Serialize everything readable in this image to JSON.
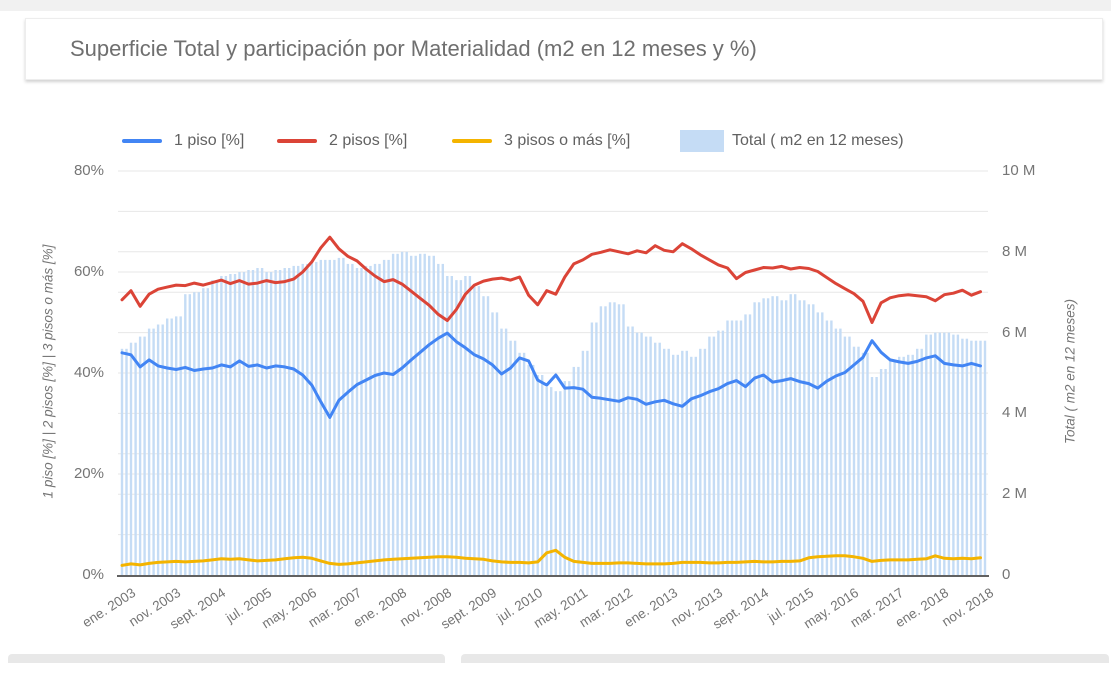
{
  "title_bar": {
    "text": "Superficie Total y participación por Materialidad (m2 en 12 meses y %)"
  },
  "legend": [
    {
      "label": "1 piso [%]",
      "color": "#4285f4",
      "type": "line"
    },
    {
      "label": "2 pisos [%]",
      "color": "#db4437",
      "type": "line"
    },
    {
      "label": "3 pisos o más [%]",
      "color": "#f4b400",
      "type": "line"
    },
    {
      "label": "Total ( m2 en 12 meses)",
      "color": "#c5dcf5",
      "type": "box"
    }
  ],
  "colors": {
    "grid": "#e7e7e7",
    "axis_line": "#616161",
    "tick_text": "#757575",
    "bar_fill": "#c5dcf5"
  },
  "chart_data": {
    "type": "combo",
    "title": "Superficie Total y participación por Materialidad (m2 en 12 meses y %)",
    "x_tick_labels": [
      "ene. 2003",
      "nov. 2003",
      "sept. 2004",
      "jul. 2005",
      "may. 2006",
      "mar. 2007",
      "ene. 2008",
      "nov. 2008",
      "sept. 2009",
      "jul. 2010",
      "may. 2011",
      "mar. 2012",
      "ene. 2013",
      "nov. 2013",
      "sept. 2014",
      "jul. 2015",
      "may. 2016",
      "mar. 2017",
      "ene. 2018",
      "nov. 2018"
    ],
    "total_months": 192,
    "months_per_point": 2,
    "points_per_tick": 5,
    "grid_on": true,
    "legend_position": "top",
    "left_axis": {
      "title": "1 piso [%] | 2 pisos [%] | 3 pisos o más [%]",
      "ticks": [
        "0%",
        "20%",
        "40%",
        "60%",
        "80%"
      ],
      "min": 0,
      "max": 80
    },
    "right_axis": {
      "title": "Total ( m2 en 12 meses)",
      "ticks": [
        "0",
        "2 M",
        "4 M",
        "6 M",
        "8 M",
        "10 M"
      ],
      "min": 0,
      "max": 10
    },
    "series": [
      {
        "name": "1 piso [%]",
        "type": "line",
        "axis": "left",
        "color": "#4285f4",
        "values": [
          44.0,
          43.6,
          41.2,
          42.6,
          41.4,
          41.0,
          40.7,
          41.1,
          40.5,
          40.8,
          41.0,
          41.6,
          41.2,
          42.4,
          41.3,
          41.6,
          41.0,
          41.4,
          41.2,
          40.8,
          39.6,
          37.6,
          34.3,
          31.2,
          34.6,
          36.2,
          37.7,
          38.6,
          39.5,
          40.0,
          39.7,
          41.0,
          42.6,
          44.1,
          45.6,
          46.9,
          47.9,
          46.2,
          45.0,
          43.6,
          42.8,
          41.6,
          39.8,
          41.0,
          43.0,
          42.4,
          38.6,
          37.6,
          39.6,
          37.0,
          37.1,
          36.8,
          35.2,
          35.0,
          34.7,
          34.4,
          35.1,
          34.8,
          33.8,
          34.3,
          34.6,
          33.9,
          33.4,
          34.9,
          35.5,
          36.3,
          36.9,
          37.9,
          38.5,
          37.3,
          39.0,
          39.6,
          38.2,
          38.5,
          38.9,
          38.3,
          37.9,
          37.0,
          38.4,
          39.4,
          40.1,
          41.6,
          43.1,
          46.4,
          44.1,
          42.6,
          42.2,
          41.9,
          42.3,
          43.0,
          43.4,
          41.9,
          41.6,
          41.4,
          41.9,
          41.4
        ]
      },
      {
        "name": "2 pisos [%]",
        "type": "line",
        "axis": "left",
        "color": "#db4437",
        "values": [
          54.5,
          56.3,
          53.2,
          55.6,
          56.6,
          57.0,
          57.4,
          57.3,
          57.8,
          57.4,
          57.9,
          58.4,
          57.7,
          58.3,
          57.6,
          57.8,
          58.3,
          57.9,
          58.1,
          58.6,
          60.0,
          62.0,
          64.8,
          66.9,
          64.6,
          63.1,
          62.2,
          60.6,
          59.2,
          58.1,
          58.5,
          57.6,
          56.2,
          54.8,
          53.4,
          51.6,
          50.4,
          52.6,
          55.6,
          57.4,
          58.2,
          58.6,
          58.8,
          58.4,
          59.0,
          55.4,
          53.5,
          56.3,
          55.6,
          59.0,
          61.6,
          62.4,
          63.5,
          63.9,
          64.4,
          64.0,
          63.6,
          64.2,
          63.8,
          65.2,
          64.3,
          64.0,
          65.6,
          64.6,
          63.4,
          62.4,
          61.4,
          60.8,
          58.7,
          59.9,
          60.4,
          60.9,
          60.8,
          61.1,
          60.6,
          60.9,
          60.7,
          60.1,
          58.9,
          57.7,
          56.7,
          55.7,
          54.2,
          50.0,
          53.9,
          54.9,
          55.3,
          55.5,
          55.3,
          55.1,
          54.3,
          55.5,
          55.8,
          56.4,
          55.4,
          56.1
        ]
      },
      {
        "name": "3 pisos o más [%]",
        "type": "line",
        "axis": "left",
        "color": "#f4b400",
        "values": [
          1.9,
          2.2,
          2.0,
          2.3,
          2.5,
          2.6,
          2.7,
          2.6,
          2.7,
          2.8,
          3.0,
          3.2,
          3.1,
          3.2,
          3.0,
          2.8,
          2.9,
          3.0,
          3.2,
          3.4,
          3.5,
          3.3,
          2.8,
          2.3,
          2.1,
          2.2,
          2.4,
          2.6,
          2.8,
          3.0,
          3.1,
          3.2,
          3.3,
          3.4,
          3.5,
          3.6,
          3.6,
          3.5,
          3.3,
          3.2,
          3.1,
          2.8,
          2.6,
          2.5,
          2.5,
          2.4,
          2.6,
          4.4,
          4.9,
          3.5,
          2.7,
          2.5,
          2.3,
          2.3,
          2.3,
          2.4,
          2.4,
          2.3,
          2.2,
          2.2,
          2.2,
          2.3,
          2.5,
          2.5,
          2.5,
          2.4,
          2.4,
          2.5,
          2.5,
          2.6,
          2.7,
          2.6,
          2.6,
          2.7,
          2.7,
          2.8,
          3.4,
          3.6,
          3.7,
          3.8,
          3.8,
          3.6,
          3.3,
          2.7,
          2.9,
          3.0,
          3.0,
          3.0,
          3.1,
          3.2,
          3.8,
          3.3,
          3.2,
          3.3,
          3.2,
          3.4
        ]
      },
      {
        "name": "Total ( m2 en 12 meses)",
        "type": "bar",
        "axis": "right",
        "color": "#c5dcf5",
        "values": [
          5.6,
          5.75,
          5.9,
          6.1,
          6.2,
          6.35,
          6.4,
          6.95,
          7.0,
          7.1,
          7.3,
          7.4,
          7.45,
          7.5,
          7.55,
          7.6,
          7.5,
          7.55,
          7.6,
          7.65,
          7.7,
          7.75,
          7.8,
          7.8,
          7.85,
          7.7,
          7.6,
          7.65,
          7.7,
          7.8,
          7.95,
          8.0,
          7.9,
          7.95,
          7.9,
          7.7,
          7.4,
          7.3,
          7.4,
          7.15,
          6.9,
          6.5,
          6.1,
          5.8,
          5.5,
          5.2,
          4.95,
          4.65,
          4.55,
          4.8,
          5.15,
          5.55,
          6.25,
          6.65,
          6.75,
          6.7,
          6.15,
          6.0,
          5.9,
          5.75,
          5.6,
          5.45,
          5.55,
          5.4,
          5.6,
          5.9,
          6.05,
          6.3,
          6.3,
          6.45,
          6.75,
          6.85,
          6.9,
          6.8,
          6.95,
          6.8,
          6.7,
          6.5,
          6.3,
          6.1,
          5.9,
          5.65,
          5.5,
          4.9,
          5.1,
          5.3,
          5.4,
          5.45,
          5.6,
          5.95,
          6.0,
          6.0,
          5.95,
          5.85,
          5.8,
          5.8
        ]
      }
    ]
  }
}
